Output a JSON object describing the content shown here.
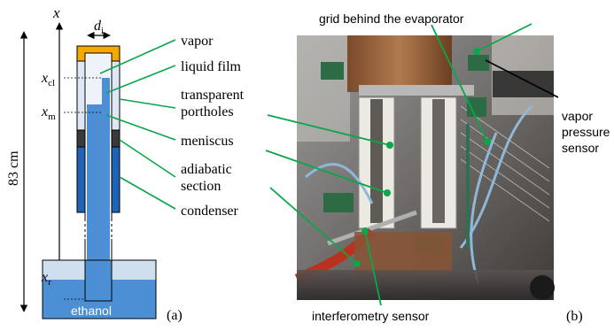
{
  "panel_a": {
    "axis_x": "x",
    "d_label": "d",
    "d_sub": "i",
    "x_cl": "x",
    "x_cl_sub": "cl",
    "x_m": "x",
    "x_m_sub": "m",
    "x_r": "x",
    "x_r_sub": "r",
    "height_label": "83 cm",
    "reservoir_label": "ethanol",
    "caption": "(a)",
    "callouts": [
      {
        "id": "vapor",
        "lines": [
          "vapor"
        ]
      },
      {
        "id": "liquid-film",
        "lines": [
          "liquid film"
        ]
      },
      {
        "id": "transparent-portholes",
        "lines": [
          "transparent",
          "portholes"
        ]
      },
      {
        "id": "meniscus",
        "lines": [
          "meniscus"
        ]
      },
      {
        "id": "adiabatic-section",
        "lines": [
          "adiabatic",
          "section"
        ]
      },
      {
        "id": "condenser",
        "lines": [
          "condenser"
        ]
      }
    ],
    "colors": {
      "heater": "#f3a900",
      "vapor_zone": "#dde8f4",
      "liquid": "#4d8fd4",
      "condenser": "#1f63b5",
      "adiabatic": "#3a3a3a",
      "reservoir_top": "#cfdff0",
      "leader": "#0aa64a"
    }
  },
  "panel_b": {
    "caption": "(b)",
    "labels": {
      "grid": "grid behind the evaporator",
      "vapor_pressure": [
        "vapor",
        "pressure",
        "sensor"
      ],
      "interferometry": "interferometry sensor"
    }
  }
}
